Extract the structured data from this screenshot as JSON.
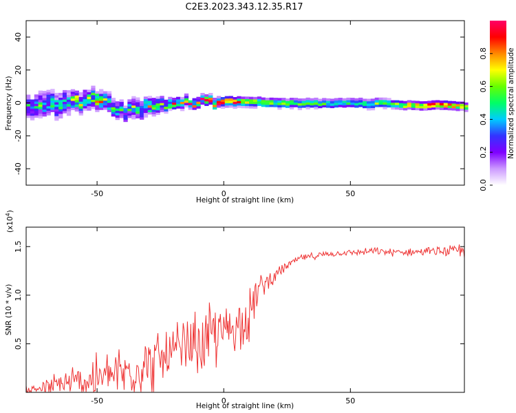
{
  "title": "C2E3.2023.343.12.35.R17",
  "chart_data": [
    {
      "type": "heatmap",
      "xlabel": "Height of straight line (km)",
      "ylabel": "Frequency (Hz)",
      "xlim": [
        -78,
        95
      ],
      "ylim": [
        -50,
        50
      ],
      "xticks": [
        -50,
        0,
        50
      ],
      "yticks": [
        -40,
        -20,
        0,
        20,
        40
      ],
      "colorbar": {
        "label": "Normalized spectral amplitude",
        "range": [
          0,
          1
        ],
        "ticks": [
          "0.0",
          "0.2",
          "0.4",
          "0.6",
          "0.8"
        ],
        "colormap": [
          "#ffffff",
          "#cc99ff",
          "#7f00ff",
          "#3333ff",
          "#00ccff",
          "#00ff66",
          "#66ff00",
          "#ffff00",
          "#ff8800",
          "#ff0000",
          "#ff0066"
        ]
      },
      "ridge": {
        "x": [
          -78,
          -70,
          -60,
          -50,
          -45,
          -40,
          -35,
          -30,
          -25,
          -20,
          -15,
          -10,
          -5,
          0,
          5,
          10,
          20,
          30,
          40,
          50,
          60,
          70,
          80,
          90,
          95
        ],
        "freq": [
          -3,
          -2,
          0,
          2,
          -3,
          -5,
          -3,
          -4,
          -1,
          -1,
          0,
          0,
          0,
          0,
          0,
          0,
          -1,
          -1,
          -1,
          -1,
          -1,
          -2,
          -2,
          -2,
          -3
        ],
        "halfwidth": [
          6,
          7,
          6,
          5,
          5,
          5,
          5,
          5,
          4,
          3,
          3,
          3,
          3,
          2.5,
          2.5,
          2.5,
          2.5,
          2.5,
          2.5,
          2.5,
          2.5,
          2,
          2,
          2,
          2
        ],
        "peak": [
          0.35,
          0.4,
          0.45,
          0.55,
          0.45,
          0.45,
          0.5,
          0.5,
          0.55,
          0.55,
          0.6,
          0.7,
          0.8,
          0.9,
          0.75,
          0.7,
          0.6,
          0.55,
          0.5,
          0.5,
          0.55,
          0.7,
          0.85,
          0.9,
          0.6
        ]
      }
    },
    {
      "type": "line",
      "xlabel": "Height of straight line (km)",
      "ylabel": "SNR (10 * v/v)",
      "yscale_label": "(x10",
      "yscale_exp": "4",
      "xlim": [
        -78,
        95
      ],
      "ylim": [
        0,
        1.7
      ],
      "xticks": [
        -50,
        0,
        50
      ],
      "yticks": [
        0.5,
        1.0,
        1.5
      ],
      "color": "#ee3333",
      "envelope": {
        "x": [
          -78,
          -70,
          -60,
          -50,
          -40,
          -30,
          -20,
          -15,
          -10,
          -5,
          0,
          5,
          10,
          12,
          15,
          20,
          25,
          30,
          40,
          50,
          60,
          70,
          80,
          90,
          95
        ],
        "base": [
          0.02,
          0.05,
          0.1,
          0.14,
          0.2,
          0.28,
          0.38,
          0.45,
          0.5,
          0.55,
          0.62,
          0.7,
          0.8,
          0.95,
          1.1,
          1.2,
          1.3,
          1.38,
          1.42,
          1.44,
          1.45,
          1.44,
          1.45,
          1.45,
          1.46
        ],
        "amp": [
          0.05,
          0.1,
          0.18,
          0.25,
          0.3,
          0.32,
          0.33,
          0.32,
          0.35,
          0.38,
          0.33,
          0.25,
          0.3,
          0.25,
          0.12,
          0.07,
          0.05,
          0.04,
          0.03,
          0.03,
          0.04,
          0.04,
          0.04,
          0.06,
          0.08
        ]
      },
      "n_points": 520
    }
  ]
}
